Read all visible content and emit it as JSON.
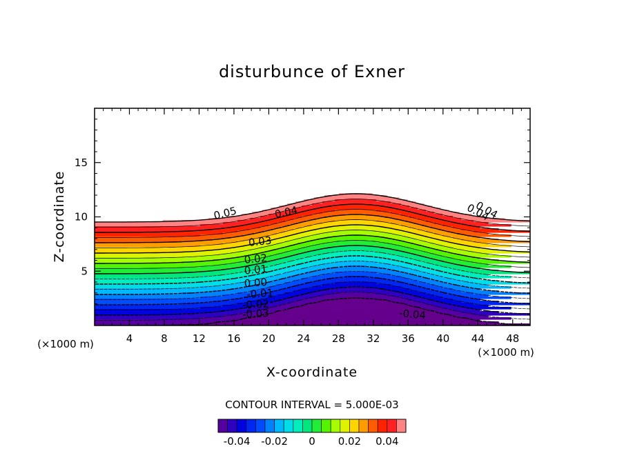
{
  "chart_data": {
    "type": "contour",
    "title": "disturbunce of Exner",
    "xlabel": "X-coordinate",
    "ylabel": "Z-coordinate",
    "x_unit": "(×1000 m)",
    "y_unit": "(×1000 m)",
    "xlim": [
      0,
      50
    ],
    "ylim": [
      0,
      20
    ],
    "x_ticks": [
      4,
      8,
      12,
      16,
      20,
      24,
      28,
      32,
      36,
      40,
      44,
      48
    ],
    "y_ticks": [
      5,
      10,
      15
    ],
    "contour_interval_text": "CONTOUR INTERVAL = 5.000E-03",
    "contour_interval": 0.005,
    "value_range": [
      -0.05,
      0.05
    ],
    "contour_labels": [
      "0.05",
      "0.04",
      "0.04",
      "0.04",
      "0.03",
      "0.02",
      "0.01",
      "0.00",
      "-0.01",
      "-0.02",
      "-0.03",
      "-0.04"
    ],
    "colorbar_ticks": [
      "-0.04",
      "-0.02",
      "0",
      "0.02",
      "0.04"
    ],
    "colorbar_tick_values": [
      -0.04,
      -0.02,
      0,
      0.02,
      0.04
    ],
    "undefined_region_color": "#ffffff",
    "dashed_negative_contours": true
  }
}
